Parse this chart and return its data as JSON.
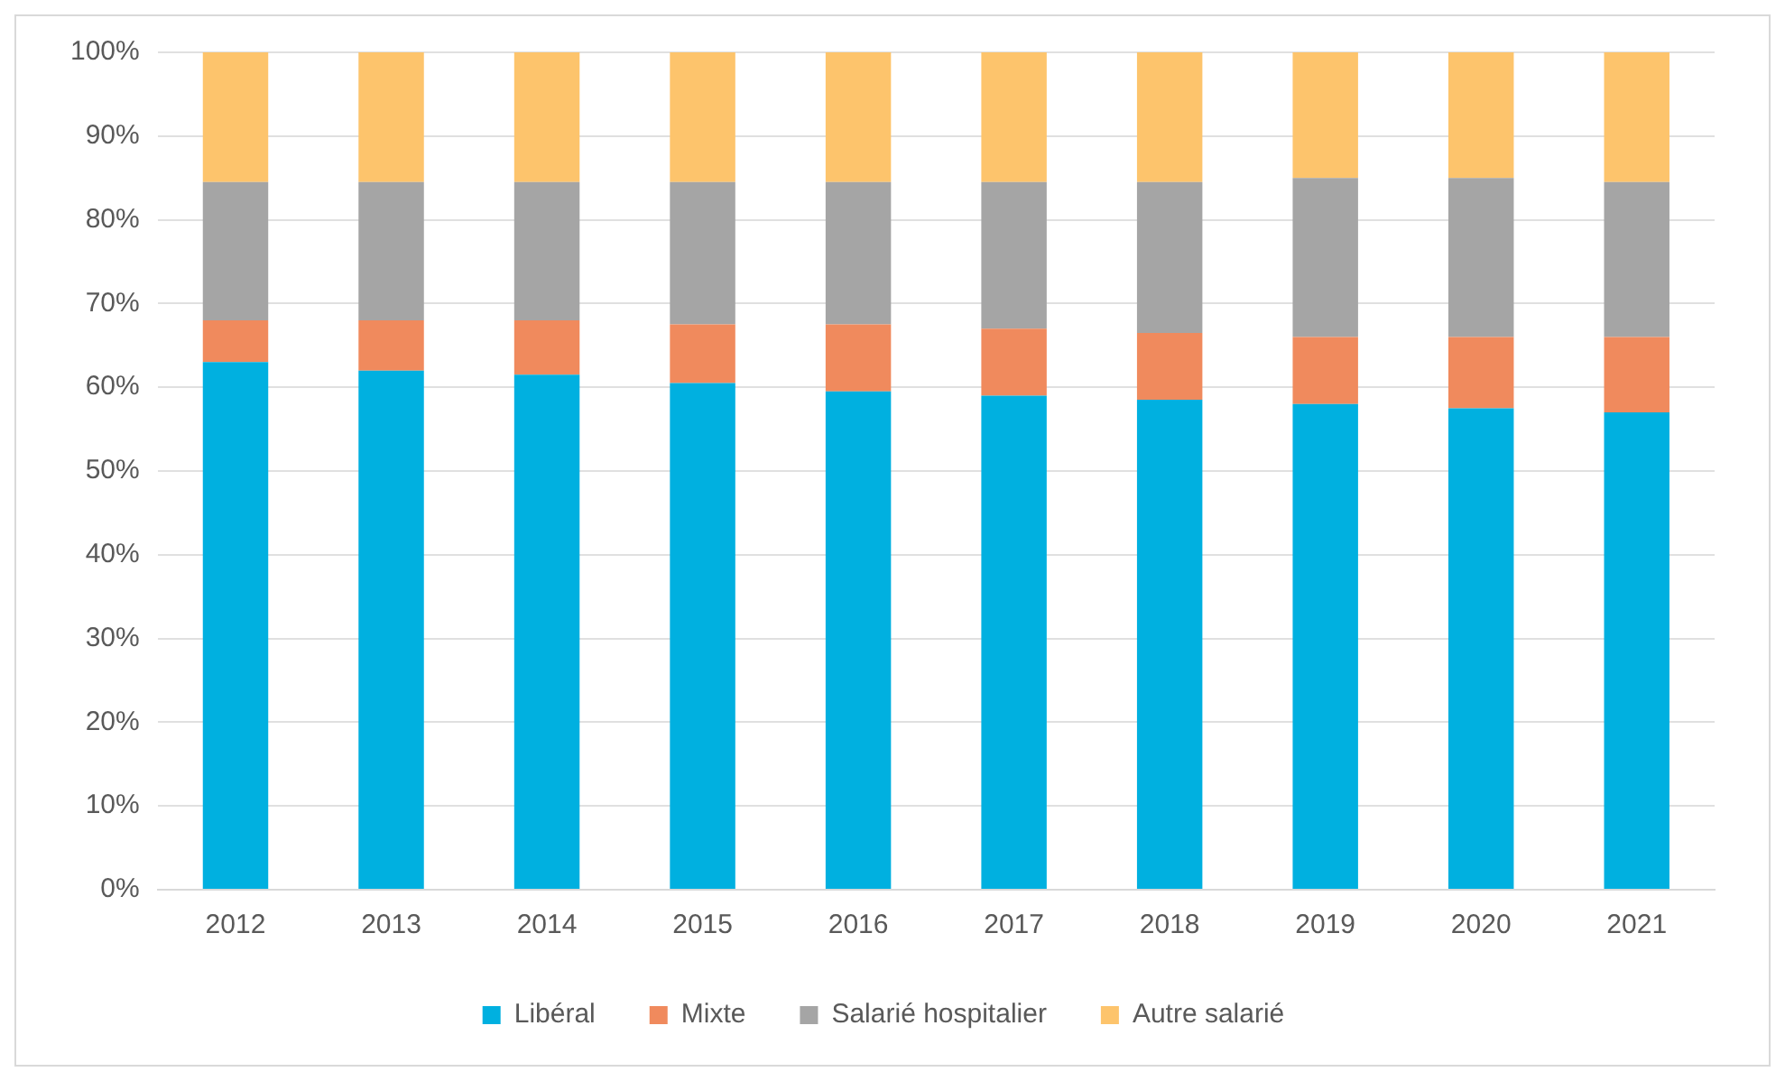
{
  "chart_data": {
    "type": "bar",
    "stacked": true,
    "categories": [
      "2012",
      "2013",
      "2014",
      "2015",
      "2016",
      "2017",
      "2018",
      "2019",
      "2020",
      "2021"
    ],
    "series": [
      {
        "name": "Libéral",
        "color": "#00b0e0",
        "values": [
          63,
          62,
          61.5,
          60.5,
          59.5,
          59,
          58.5,
          58,
          57.5,
          57
        ]
      },
      {
        "name": "Mixte",
        "color": "#f08a5d",
        "values": [
          5,
          6,
          6.5,
          7,
          8,
          8,
          8,
          8,
          8.5,
          9
        ]
      },
      {
        "name": "Salarié hospitalier",
        "color": "#a5a5a5",
        "values": [
          16.5,
          16.5,
          16.5,
          17,
          17,
          17.5,
          18,
          19,
          19,
          18.5
        ]
      },
      {
        "name": "Autre salarié",
        "color": "#fdc46c",
        "values": [
          15.5,
          15.5,
          15.5,
          15.5,
          15.5,
          15.5,
          15.5,
          15,
          15,
          15.5
        ]
      }
    ],
    "ylim": [
      0,
      100
    ],
    "yticks": [
      {
        "value": 0,
        "label": "0%"
      },
      {
        "value": 10,
        "label": "10%"
      },
      {
        "value": 20,
        "label": "20%"
      },
      {
        "value": 30,
        "label": "30%"
      },
      {
        "value": 40,
        "label": "40%"
      },
      {
        "value": 50,
        "label": "50%"
      },
      {
        "value": 60,
        "label": "60%"
      },
      {
        "value": 70,
        "label": "70%"
      },
      {
        "value": 80,
        "label": "80%"
      },
      {
        "value": 90,
        "label": "90%"
      },
      {
        "value": 100,
        "label": "100%"
      }
    ],
    "grid": "y",
    "legend": "bottom"
  }
}
